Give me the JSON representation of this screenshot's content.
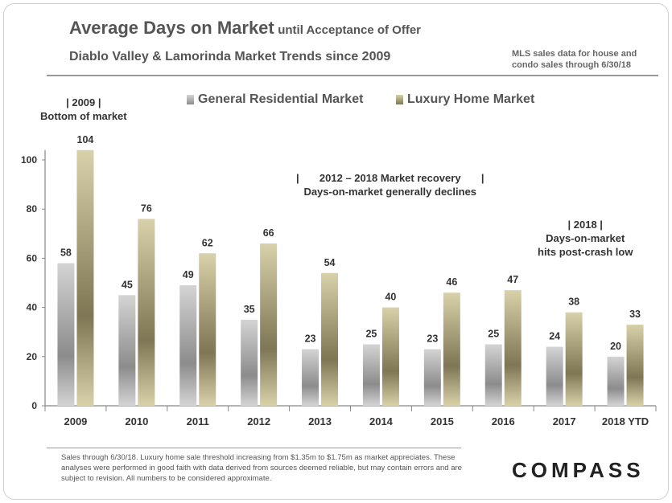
{
  "header": {
    "title_main": "Average Days on Market",
    "title_suffix": "until Acceptance of Offer",
    "subtitle": "Diablo Valley & Lamorinda Market Trends since 2009",
    "source_note_line1": "MLS sales data for house and",
    "source_note_line2": "condo sales through 6/30/18"
  },
  "annotations": {
    "a2009_line1": "| 2009 |",
    "a2009_line2": "Bottom of market",
    "recovery_line1": "|       2012 – 2018 Market recovery       |",
    "recovery_line2": "Days-on-market generally declines",
    "a2018_line1": "| 2018 |",
    "a2018_line2": "Days-on-market",
    "a2018_line3": "hits post-crash low"
  },
  "footer": {
    "disclaimer": "Sales through 6/30/18. Luxury home sale threshold increasing from $1.35m to $1.75m as market appreciates. These analyses were performed in good faith with data derived from sources deemed reliable, but may contain errors and are subject to revision. All numbers to be considered approximate.",
    "logo_text": "COMPASS"
  },
  "colors": {
    "general_light": "#d4d4d4",
    "general_dark": "#8c8c8c",
    "luxury_light": "#d9d1a9",
    "luxury_dark": "#7e7654"
  },
  "chart_data": {
    "type": "bar",
    "categories": [
      "2009",
      "2010",
      "2011",
      "2012",
      "2013",
      "2014",
      "2015",
      "2016",
      "2017",
      "2018 YTD"
    ],
    "series": [
      {
        "name": "General Residential Market",
        "values": [
          58,
          45,
          49,
          35,
          23,
          25,
          23,
          25,
          24,
          20
        ]
      },
      {
        "name": "Luxury Home Market",
        "values": [
          104,
          76,
          62,
          66,
          54,
          40,
          46,
          47,
          38,
          33
        ]
      }
    ],
    "yticks": [
      0,
      20,
      40,
      60,
      80,
      100
    ],
    "ylim": [
      0,
      104
    ],
    "legend_position": "top-center",
    "grid": false
  }
}
